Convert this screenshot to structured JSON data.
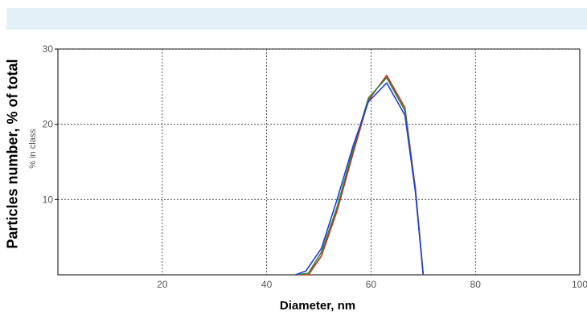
{
  "chart_data": {
    "type": "line",
    "title": "",
    "xlabel": "Diameter, nm",
    "ylabel": "Particles number, % of total",
    "ylabel_secondary": "% in class",
    "xlim": [
      0,
      100
    ],
    "ylim": [
      0,
      30
    ],
    "xticks": [
      20,
      40,
      60,
      80,
      100
    ],
    "yticks": [
      10,
      20,
      30
    ],
    "grid": true,
    "series": [
      {
        "color": "#c8281e",
        "x": [
          45.5,
          48,
          50.5,
          53.5,
          56.5,
          59.5,
          63,
          66.5,
          68.5,
          70
        ],
        "y": [
          0,
          0,
          2.5,
          8.5,
          16,
          23.2,
          26.5,
          22.2,
          11.5,
          0
        ]
      },
      {
        "color": "#2e8b3a",
        "x": [
          45.5,
          48,
          50.5,
          53.5,
          56.5,
          59.5,
          63,
          66.5,
          68.5,
          70
        ],
        "y": [
          0,
          0.2,
          3,
          9,
          16.5,
          23.5,
          26.2,
          21.8,
          11.2,
          0
        ]
      },
      {
        "color": "#1f3fd6",
        "x": [
          45.5,
          47.5,
          50.5,
          53.5,
          56.5,
          59.5,
          63,
          66.5,
          68.5,
          70
        ],
        "y": [
          0,
          0.5,
          3.5,
          10,
          17,
          23,
          25.5,
          21.2,
          11,
          0
        ]
      }
    ]
  }
}
